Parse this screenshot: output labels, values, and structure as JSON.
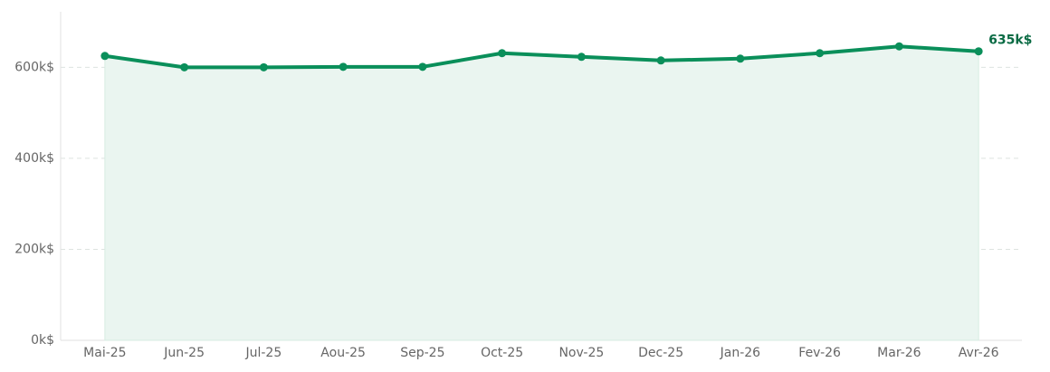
{
  "chart_data": {
    "type": "line",
    "categories": [
      "Mai-25",
      "Jun-25",
      "Jul-25",
      "Aou-25",
      "Sep-25",
      "Oct-25",
      "Nov-25",
      "Dec-25",
      "Jan-26",
      "Fev-26",
      "Mar-26",
      "Avr-26"
    ],
    "values": [
      625,
      600,
      600,
      601,
      601,
      631,
      623,
      615,
      619,
      631,
      646,
      635
    ],
    "value_labels": [
      null,
      null,
      null,
      null,
      null,
      null,
      null,
      null,
      null,
      null,
      null,
      "635k$"
    ],
    "color": "#0a8f5a",
    "area_color": "#eaf5f0",
    "ylim": [
      0,
      722
    ],
    "yticks": [
      {
        "value": 0,
        "label": "0k$"
      },
      {
        "value": 200,
        "label": "200k$"
      },
      {
        "value": 400,
        "label": "400k$"
      },
      {
        "value": 600,
        "label": "600k$"
      }
    ],
    "grid": true
  }
}
